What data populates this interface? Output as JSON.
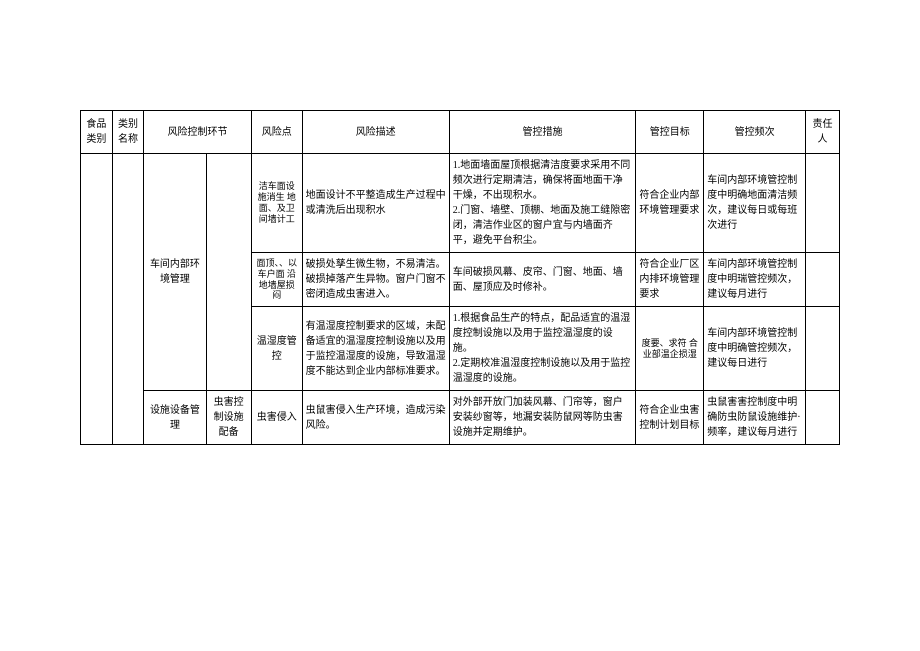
{
  "headers": {
    "food_category": "食品类别",
    "category_name": "类别名称",
    "risk_link": "风险控制环节",
    "risk_point": "风险点",
    "risk_desc": "风险描述",
    "control_measure": "管控措施",
    "control_goal": "管控目标",
    "control_freq": "管控频次",
    "responsible": "责任人"
  },
  "groups": {
    "env_mgmt": "车间内部环境管理",
    "facility_mgmt": "设施设备管理",
    "pest_sub": "虫害控制设施配备"
  },
  "rows": [
    {
      "risk_point": "洁车面设施消生 地面、及卫间墙计工",
      "risk_desc": "地面设计不平整造成生产过程中或清洗后出现积水",
      "control_measure": "1.地面墙面屋顶根据清洁度要求采用不同频次进行定期清洁，确保将面地面干净干燥，不出现积水。\n2.门窗、墙壁、顶棚、地面及施工缝隙密闭，清洁作业区的窗户宜与内墙面齐平，避免平台积尘。",
      "control_goal": "符合企业内部环境管理要求",
      "control_freq": "车间内部环境管控制度中明确地面清洁频次，建议每日或每班次进行"
    },
    {
      "risk_point": "面顶、、以车户面 沿地墙屋损闷",
      "risk_desc": "破损处孳生微生物，不易清洁。破损掉落产生异物。窗户门窗不密闭造成虫害进入。",
      "control_measure": "车间破损风幕、皮帘、门窗、地面、墙面、屋顶应及时修补。",
      "control_goal": "符合企业厂区内排环境管理要求",
      "control_freq": "车间内部环境管控制度中明瑞管控频次，建议每月进行"
    },
    {
      "risk_point": "温湿度管控",
      "risk_desc": "有温湿度控制要求的区域，未配备适宜的温湿度控制设施以及用于监控温湿度的设施，导致温湿度不能达到企业内部标准要求。",
      "control_measure": "1.根据食品生产的特点，配品适宜的温湿度控制设施以及用于监控温湿度的设施。\n2.定期校准温湿度控制设施以及用于监控温湿度的设施。",
      "control_goal": "度要、求符 合业部温企损湿",
      "control_freq": "车间内部环境管控制度中明确管控频次，建议每日进行"
    },
    {
      "risk_point": "虫害侵入",
      "risk_desc": "虫鼠害侵入生产环境，造成污染风险。",
      "control_measure": "对外部开放门加装风幕、门帘等，窗户安装纱窗等，地漏安装防鼠网等防虫害设施并定期维护。",
      "control_goal": "符合企业虫害控制计划目标",
      "control_freq": "虫鼠害害控制度中明确防虫防鼠设施维护·频率，建议每月进行"
    }
  ]
}
